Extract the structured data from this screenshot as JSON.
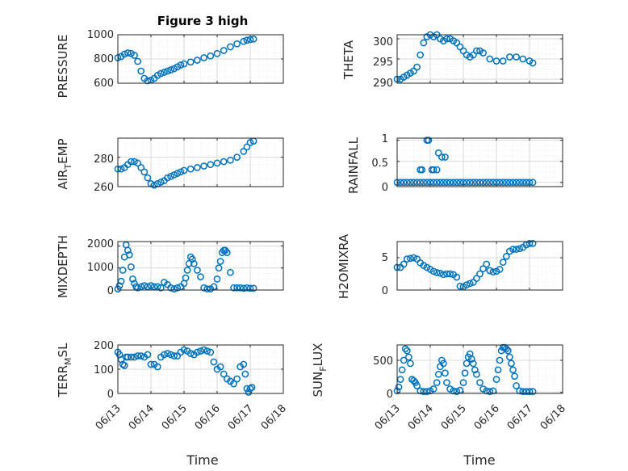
{
  "colors": {
    "marker": "#0072BD",
    "axis": "#262626",
    "grid": "#d9d9d9",
    "minor_grid": "#ececec"
  },
  "chart_data": [
    {
      "type": "scatter",
      "title": "Figure 3 high",
      "ylabel": "PRESSURE",
      "xlabel": "",
      "xlim": [
        0,
        5
      ],
      "ylim": [
        600,
        1000
      ],
      "yticks": [
        600,
        800,
        1000
      ],
      "ytick_labels": [
        "600",
        "800",
        "1000"
      ],
      "grid": true,
      "x": [
        0.0,
        0.1,
        0.2,
        0.3,
        0.4,
        0.5,
        0.6,
        0.7,
        0.8,
        0.9,
        1.0,
        1.1,
        1.2,
        1.3,
        1.4,
        1.5,
        1.6,
        1.7,
        1.8,
        1.9,
        2.0,
        2.2,
        2.4,
        2.6,
        2.8,
        3.0,
        3.2,
        3.4,
        3.6,
        3.8,
        3.9,
        4.0,
        4.1
      ],
      "y": [
        810,
        820,
        840,
        850,
        845,
        830,
        780,
        700,
        640,
        620,
        625,
        640,
        665,
        680,
        690,
        700,
        710,
        720,
        735,
        750,
        760,
        775,
        790,
        810,
        825,
        845,
        870,
        900,
        925,
        945,
        955,
        960,
        965
      ]
    },
    {
      "type": "scatter",
      "ylabel": "THETA",
      "xlim": [
        0,
        5
      ],
      "ylim": [
        289,
        301
      ],
      "yticks": [
        290,
        295,
        300
      ],
      "ytick_labels": [
        "290",
        "295",
        "300"
      ],
      "grid": true,
      "x": [
        0.0,
        0.1,
        0.2,
        0.3,
        0.4,
        0.5,
        0.6,
        0.7,
        0.8,
        0.9,
        1.0,
        1.1,
        1.2,
        1.3,
        1.4,
        1.5,
        1.6,
        1.7,
        1.8,
        1.9,
        2.0,
        2.1,
        2.2,
        2.3,
        2.4,
        2.5,
        2.6,
        2.8,
        3.0,
        3.2,
        3.4,
        3.6,
        3.8,
        4.0,
        4.1
      ],
      "y": [
        290,
        290,
        290.5,
        291,
        291.5,
        292,
        293,
        296,
        299,
        300.5,
        301,
        300.5,
        301,
        300,
        299.5,
        300,
        300,
        299.5,
        299,
        298,
        297,
        296,
        295.5,
        296,
        297,
        297,
        296.5,
        295,
        294.5,
        294.5,
        295.5,
        295.5,
        295,
        294.5,
        294
      ]
    },
    {
      "type": "scatter",
      "ylabel": "AIR_TEMP",
      "xlim": [
        0,
        5
      ],
      "ylim": [
        260,
        293
      ],
      "yticks": [
        260,
        280
      ],
      "ytick_labels": [
        "260",
        "280"
      ],
      "grid": true,
      "x": [
        0.0,
        0.1,
        0.2,
        0.3,
        0.4,
        0.5,
        0.6,
        0.7,
        0.8,
        0.9,
        1.0,
        1.1,
        1.2,
        1.3,
        1.4,
        1.5,
        1.6,
        1.7,
        1.8,
        1.9,
        2.0,
        2.2,
        2.4,
        2.6,
        2.8,
        3.0,
        3.2,
        3.4,
        3.6,
        3.8,
        3.9,
        4.0,
        4.1
      ],
      "y": [
        272,
        272,
        273,
        275,
        277,
        277,
        276,
        273,
        270,
        266,
        262,
        261,
        262,
        263,
        264,
        266,
        267,
        268,
        269,
        270,
        271,
        272,
        273,
        274,
        275,
        276,
        277,
        278,
        280,
        284,
        287,
        290,
        291
      ]
    },
    {
      "type": "scatter",
      "ylabel": "RAINFALL",
      "xlim": [
        0,
        5
      ],
      "ylim": [
        -0.1,
        1.05
      ],
      "yticks": [
        0,
        0.5,
        1
      ],
      "ytick_labels": [
        "0",
        "0.5",
        "1"
      ],
      "grid": true,
      "x": [
        0.0,
        0.1,
        0.2,
        0.3,
        0.4,
        0.5,
        0.6,
        0.7,
        0.8,
        0.9,
        1.0,
        1.1,
        1.2,
        1.3,
        1.4,
        1.5,
        1.6,
        1.7,
        1.8,
        1.9,
        2.0,
        2.1,
        2.2,
        2.3,
        2.4,
        2.5,
        2.6,
        2.7,
        2.8,
        2.9,
        3.0,
        3.1,
        3.2,
        3.3,
        3.4,
        3.5,
        3.6,
        3.7,
        3.8,
        3.9,
        4.0,
        4.1,
        0.7,
        0.75,
        0.9,
        0.95,
        1.05,
        1.1,
        1.2,
        1.25,
        1.35,
        1.45
      ],
      "y": [
        0,
        0,
        0,
        0,
        0,
        0,
        0,
        0,
        0,
        0,
        0,
        0,
        0,
        0,
        0,
        0,
        0,
        0,
        0,
        0,
        0,
        0,
        0,
        0,
        0,
        0,
        0,
        0,
        0,
        0,
        0,
        0,
        0,
        0,
        0,
        0,
        0,
        0,
        0,
        0,
        0,
        0,
        0.3,
        0.3,
        1.0,
        1.0,
        0.3,
        0.3,
        0.3,
        0.7,
        0.6,
        0.6
      ]
    },
    {
      "type": "scatter",
      "ylabel": "MIXDEPTH",
      "xlim": [
        0,
        5
      ],
      "ylim": [
        0,
        2200
      ],
      "yticks": [
        0,
        1000,
        2000
      ],
      "ytick_labels": [
        "0",
        "1000",
        "2000"
      ],
      "grid": true,
      "x": [
        0.0,
        0.05,
        0.1,
        0.15,
        0.2,
        0.25,
        0.3,
        0.35,
        0.4,
        0.45,
        0.5,
        0.55,
        0.6,
        0.7,
        0.8,
        0.9,
        1.0,
        1.1,
        1.2,
        1.3,
        1.4,
        1.5,
        1.6,
        1.7,
        1.8,
        1.9,
        2.0,
        2.05,
        2.1,
        2.15,
        2.2,
        2.25,
        2.3,
        2.4,
        2.5,
        2.6,
        2.7,
        2.8,
        2.9,
        3.0,
        3.05,
        3.1,
        3.15,
        3.2,
        3.25,
        3.3,
        3.4,
        3.5,
        3.6,
        3.7,
        3.8,
        3.9,
        4.0,
        4.1
      ],
      "y": [
        50,
        200,
        400,
        900,
        1500,
        2050,
        1800,
        1600,
        1050,
        500,
        300,
        150,
        100,
        150,
        200,
        150,
        200,
        150,
        150,
        100,
        350,
        250,
        100,
        50,
        100,
        150,
        300,
        550,
        900,
        1200,
        1500,
        1400,
        1200,
        900,
        600,
        100,
        50,
        50,
        150,
        500,
        1000,
        1300,
        1700,
        1800,
        1800,
        1700,
        800,
        100,
        100,
        100,
        80,
        100,
        80,
        80
      ]
    },
    {
      "type": "scatter",
      "ylabel": "H2OMIXRA",
      "xlim": [
        0,
        5
      ],
      "ylim": [
        0,
        7.5
      ],
      "yticks": [
        0,
        5
      ],
      "ytick_labels": [
        "0",
        "5"
      ],
      "grid": true,
      "x": [
        0.0,
        0.1,
        0.2,
        0.3,
        0.4,
        0.5,
        0.6,
        0.7,
        0.8,
        0.9,
        1.0,
        1.1,
        1.2,
        1.3,
        1.4,
        1.5,
        1.6,
        1.7,
        1.8,
        1.9,
        2.0,
        2.1,
        2.2,
        2.3,
        2.4,
        2.5,
        2.6,
        2.7,
        2.8,
        2.9,
        3.0,
        3.1,
        3.2,
        3.3,
        3.4,
        3.5,
        3.6,
        3.7,
        3.8,
        3.9,
        4.0,
        4.1
      ],
      "y": [
        3.5,
        3.5,
        4.0,
        4.8,
        4.9,
        5.0,
        4.8,
        4.2,
        3.8,
        3.5,
        3.2,
        2.9,
        2.7,
        2.6,
        2.4,
        2.5,
        2.5,
        2.4,
        2.0,
        0.6,
        0.5,
        0.8,
        1.0,
        1.2,
        1.8,
        2.5,
        3.3,
        4.0,
        3.0,
        2.8,
        2.9,
        3.2,
        4.3,
        5.2,
        6.0,
        6.3,
        6.3,
        6.4,
        6.6,
        7.0,
        7.2,
        7.2
      ]
    },
    {
      "type": "scatter",
      "ylabel": "TERR_MSL",
      "xlabel": "Time",
      "xlim": [
        0,
        5
      ],
      "ylim": [
        0,
        200
      ],
      "yticks": [
        0,
        100,
        200
      ],
      "ytick_labels": [
        "0",
        "100",
        "200"
      ],
      "xtick_labels": [
        "06/13",
        "06/14",
        "06/15",
        "06/16",
        "06/17",
        "06/18"
      ],
      "grid": true,
      "x": [
        0.0,
        0.05,
        0.1,
        0.15,
        0.2,
        0.25,
        0.3,
        0.4,
        0.5,
        0.6,
        0.7,
        0.8,
        0.9,
        1.0,
        1.1,
        1.2,
        1.3,
        1.4,
        1.5,
        1.6,
        1.7,
        1.8,
        1.9,
        2.0,
        2.1,
        2.2,
        2.3,
        2.4,
        2.5,
        2.6,
        2.7,
        2.8,
        2.9,
        3.0,
        3.1,
        3.2,
        3.3,
        3.4,
        3.5,
        3.6,
        3.7,
        3.8,
        3.85,
        3.9,
        3.95,
        4.0,
        4.05
      ],
      "y": [
        170,
        160,
        140,
        120,
        115,
        150,
        150,
        150,
        150,
        155,
        155,
        150,
        160,
        120,
        120,
        110,
        150,
        160,
        165,
        160,
        155,
        155,
        170,
        180,
        175,
        165,
        160,
        170,
        175,
        180,
        175,
        170,
        130,
        100,
        110,
        80,
        60,
        50,
        40,
        60,
        110,
        120,
        80,
        20,
        5,
        20,
        25
      ]
    },
    {
      "type": "scatter",
      "ylabel": "SUN_FLUX",
      "xlabel": "Time",
      "xlim": [
        0,
        5
      ],
      "ylim": [
        -20,
        740
      ],
      "yticks": [
        0,
        500
      ],
      "ytick_labels": [
        "0",
        "500"
      ],
      "xtick_labels": [
        "06/13",
        "06/14",
        "06/15",
        "06/16",
        "06/17",
        "06/18"
      ],
      "grid": true,
      "x": [
        0.0,
        0.05,
        0.1,
        0.15,
        0.2,
        0.25,
        0.3,
        0.35,
        0.4,
        0.45,
        0.5,
        0.55,
        0.6,
        0.7,
        0.8,
        0.9,
        1.0,
        1.1,
        1.2,
        1.25,
        1.3,
        1.35,
        1.4,
        1.45,
        1.5,
        1.6,
        1.7,
        1.8,
        1.9,
        2.0,
        2.05,
        2.1,
        2.15,
        2.2,
        2.25,
        2.3,
        2.35,
        2.4,
        2.5,
        2.6,
        2.7,
        2.8,
        2.9,
        3.0,
        3.05,
        3.1,
        3.15,
        3.2,
        3.25,
        3.3,
        3.35,
        3.4,
        3.45,
        3.5,
        3.55,
        3.6,
        3.7,
        3.8,
        3.9,
        4.0,
        4.1
      ],
      "y": [
        20,
        80,
        200,
        350,
        500,
        680,
        650,
        550,
        450,
        200,
        180,
        150,
        100,
        20,
        10,
        10,
        20,
        50,
        150,
        280,
        400,
        500,
        450,
        300,
        150,
        50,
        20,
        10,
        30,
        150,
        300,
        450,
        550,
        600,
        520,
        450,
        350,
        280,
        150,
        50,
        20,
        10,
        20,
        200,
        350,
        500,
        650,
        700,
        700,
        680,
        650,
        550,
        450,
        350,
        250,
        100,
        20,
        10,
        10,
        10,
        10
      ]
    }
  ]
}
